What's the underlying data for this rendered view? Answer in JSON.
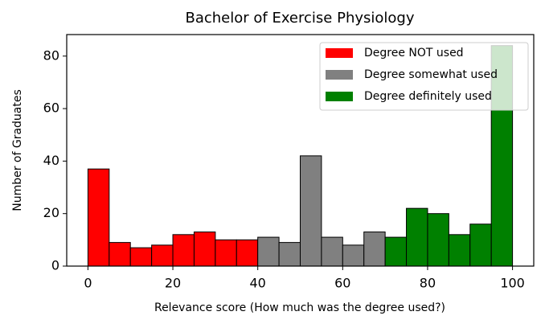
{
  "chart_data": {
    "type": "histogram",
    "title": "Bachelor of Exercise Physiology",
    "x_label": "Relevance score (How much was the degree used?)",
    "y_label": "Number of Graduates",
    "xlim": [
      -5,
      105
    ],
    "ylim": [
      0,
      88.2
    ],
    "xticks": [
      0,
      20,
      40,
      60,
      80,
      100
    ],
    "yticks": [
      0,
      20,
      40,
      60,
      80
    ],
    "legend": "upper right",
    "series": [
      {
        "name": "Degree NOT used",
        "color": "#ff0000",
        "bins": [
          0,
          5,
          10,
          15,
          20,
          25,
          30,
          35,
          40
        ],
        "values": [
          37,
          9,
          7,
          8,
          12,
          13,
          10,
          10
        ]
      },
      {
        "name": "Degree somewhat used",
        "color": "#808080",
        "bins": [
          40,
          45,
          50,
          55,
          60,
          65,
          70
        ],
        "values": [
          11,
          9,
          42,
          11,
          8,
          13
        ]
      },
      {
        "name": "Degree definitely used",
        "color": "#008000",
        "bins": [
          70,
          75,
          80,
          85,
          90,
          95,
          100
        ],
        "values": [
          11,
          22,
          20,
          12,
          16,
          84
        ]
      }
    ]
  }
}
